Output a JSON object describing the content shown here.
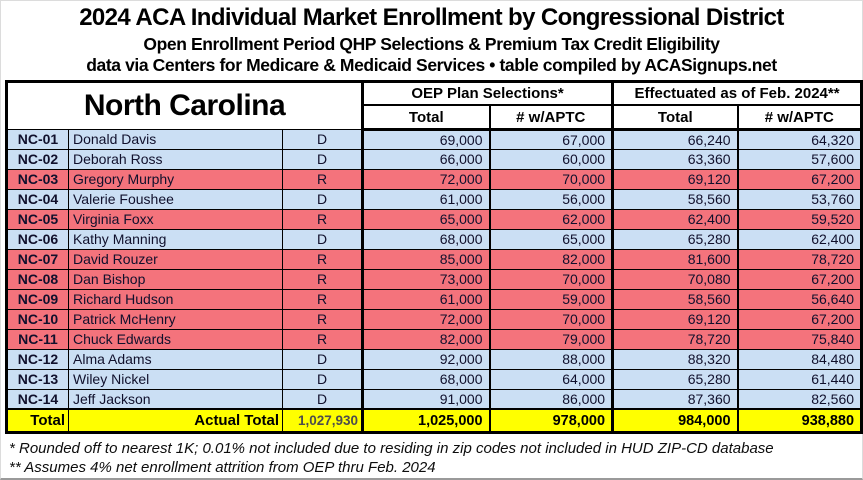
{
  "chart_data": {
    "type": "table",
    "title": "2024 ACA Individual Market Enrollment by Congressional District",
    "subtitle": "Open Enrollment Period QHP Selections & Premium Tax Credit Eligibility",
    "source_line": "data via Centers for Medicare & Medicaid Services • table compiled by ACASignups.net",
    "state": "North Carolina",
    "group_headers": [
      "OEP Plan Selections*",
      "Effectuated as of Feb. 2024**"
    ],
    "sub_headers": [
      "Total",
      "# w/APTC",
      "Total",
      "# w/APTC"
    ],
    "rows": [
      {
        "district": "NC-01",
        "rep": "Donald Davis",
        "party": "D",
        "oep_total": "69,000",
        "oep_aptc": "67,000",
        "eff_total": "66,240",
        "eff_aptc": "64,320"
      },
      {
        "district": "NC-02",
        "rep": "Deborah Ross",
        "party": "D",
        "oep_total": "66,000",
        "oep_aptc": "60,000",
        "eff_total": "63,360",
        "eff_aptc": "57,600"
      },
      {
        "district": "NC-03",
        "rep": "Gregory Murphy",
        "party": "R",
        "oep_total": "72,000",
        "oep_aptc": "70,000",
        "eff_total": "69,120",
        "eff_aptc": "67,200"
      },
      {
        "district": "NC-04",
        "rep": "Valerie Foushee",
        "party": "D",
        "oep_total": "61,000",
        "oep_aptc": "56,000",
        "eff_total": "58,560",
        "eff_aptc": "53,760"
      },
      {
        "district": "NC-05",
        "rep": "Virginia Foxx",
        "party": "R",
        "oep_total": "65,000",
        "oep_aptc": "62,000",
        "eff_total": "62,400",
        "eff_aptc": "59,520"
      },
      {
        "district": "NC-06",
        "rep": "Kathy Manning",
        "party": "D",
        "oep_total": "68,000",
        "oep_aptc": "65,000",
        "eff_total": "65,280",
        "eff_aptc": "62,400"
      },
      {
        "district": "NC-07",
        "rep": "David Rouzer",
        "party": "R",
        "oep_total": "85,000",
        "oep_aptc": "82,000",
        "eff_total": "81,600",
        "eff_aptc": "78,720"
      },
      {
        "district": "NC-08",
        "rep": "Dan Bishop",
        "party": "R",
        "oep_total": "73,000",
        "oep_aptc": "70,000",
        "eff_total": "70,080",
        "eff_aptc": "67,200"
      },
      {
        "district": "NC-09",
        "rep": "Richard Hudson",
        "party": "R",
        "oep_total": "61,000",
        "oep_aptc": "59,000",
        "eff_total": "58,560",
        "eff_aptc": "56,640"
      },
      {
        "district": "NC-10",
        "rep": "Patrick McHenry",
        "party": "R",
        "oep_total": "72,000",
        "oep_aptc": "70,000",
        "eff_total": "69,120",
        "eff_aptc": "67,200"
      },
      {
        "district": "NC-11",
        "rep": "Chuck Edwards",
        "party": "R",
        "oep_total": "82,000",
        "oep_aptc": "79,000",
        "eff_total": "78,720",
        "eff_aptc": "75,840"
      },
      {
        "district": "NC-12",
        "rep": "Alma Adams",
        "party": "D",
        "oep_total": "92,000",
        "oep_aptc": "88,000",
        "eff_total": "88,320",
        "eff_aptc": "84,480"
      },
      {
        "district": "NC-13",
        "rep": "Wiley Nickel",
        "party": "D",
        "oep_total": "68,000",
        "oep_aptc": "64,000",
        "eff_total": "65,280",
        "eff_aptc": "61,440"
      },
      {
        "district": "NC-14",
        "rep": "Jeff Jackson",
        "party": "D",
        "oep_total": "91,000",
        "oep_aptc": "86,000",
        "eff_total": "87,360",
        "eff_aptc": "82,560"
      }
    ],
    "totals": {
      "label": "Total",
      "actual_label": "Actual Total",
      "actual_total": "1,027,930",
      "oep_total": "1,025,000",
      "oep_aptc": "978,000",
      "eff_total": "984,000",
      "eff_aptc": "938,880"
    },
    "footnotes": [
      "* Rounded off to nearest 1K; 0.01% not included due to residing in zip codes not included in HUD ZIP-CD database",
      "** Assumes 4% net enrollment attrition from OEP thru Feb. 2024"
    ],
    "colors": {
      "dem_row": "#CBDFF4",
      "rep_row": "#F4737C",
      "total_row": "#FFFF00"
    }
  }
}
